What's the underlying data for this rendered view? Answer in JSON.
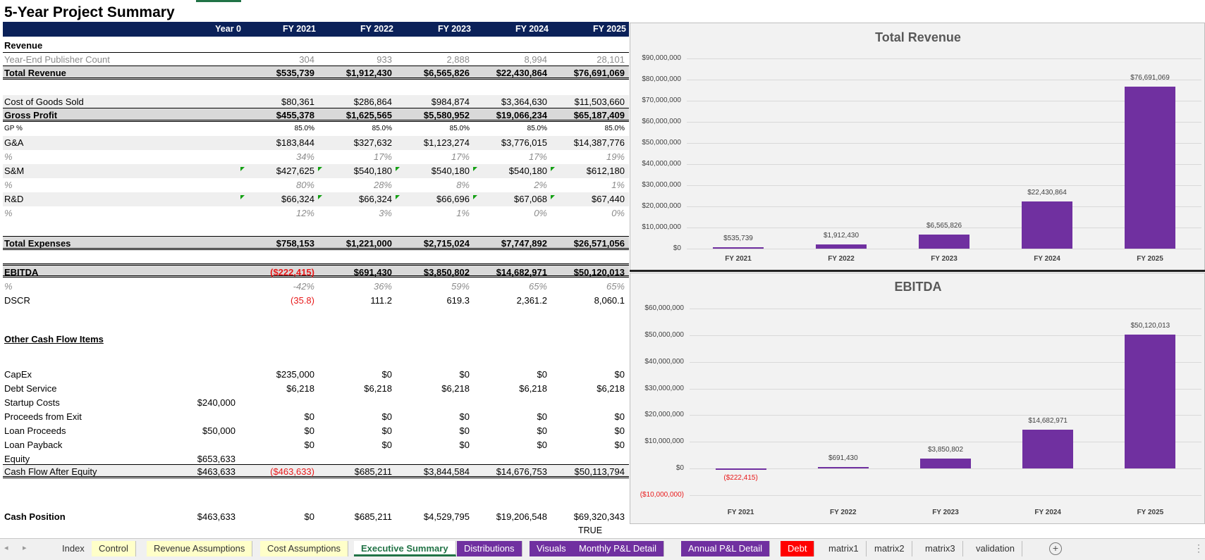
{
  "title": "5-Year Project Summary",
  "columns": [
    "Year 0",
    "FY 2021",
    "FY 2022",
    "FY 2023",
    "FY 2024",
    "FY 2025"
  ],
  "rows": [
    {
      "label": "Revenue",
      "vals": [
        "",
        "",
        "",
        "",
        "",
        ""
      ]
    },
    {
      "label": "Year-End Publisher Count",
      "vals": [
        "",
        "304",
        "933",
        "2,888",
        "8,994",
        "28,101"
      ]
    },
    {
      "label": "Total Revenue",
      "vals": [
        "",
        "$535,739",
        "$1,912,430",
        "$6,565,826",
        "$22,430,864",
        "$76,691,069"
      ]
    },
    {
      "label": "Cost of Goods Sold",
      "vals": [
        "",
        "$80,361",
        "$286,864",
        "$984,874",
        "$3,364,630",
        "$11,503,660"
      ]
    },
    {
      "label": "Gross Profit",
      "vals": [
        "",
        "$455,378",
        "$1,625,565",
        "$5,580,952",
        "$19,066,234",
        "$65,187,409"
      ]
    },
    {
      "label": "GP %",
      "vals": [
        "",
        "85.0%",
        "85.0%",
        "85.0%",
        "85.0%",
        "85.0%"
      ]
    },
    {
      "label": "G&A",
      "vals": [
        "",
        "$183,844",
        "$327,632",
        "$1,123,274",
        "$3,776,015",
        "$14,387,776"
      ]
    },
    {
      "label": "%",
      "vals": [
        "",
        "34%",
        "17%",
        "17%",
        "17%",
        "19%"
      ]
    },
    {
      "label": "S&M",
      "vals": [
        "",
        "$427,625",
        "$540,180",
        "$540,180",
        "$540,180",
        "$612,180"
      ]
    },
    {
      "label": "%",
      "vals": [
        "",
        "80%",
        "28%",
        "8%",
        "2%",
        "1%"
      ]
    },
    {
      "label": "R&D",
      "vals": [
        "",
        "$66,324",
        "$66,324",
        "$66,696",
        "$67,068",
        "$67,440"
      ]
    },
    {
      "label": "%",
      "vals": [
        "",
        "12%",
        "3%",
        "1%",
        "0%",
        "0%"
      ]
    },
    {
      "label": "Total Expenses",
      "vals": [
        "",
        "$758,153",
        "$1,221,000",
        "$2,715,024",
        "$7,747,892",
        "$26,571,056"
      ]
    },
    {
      "label": "EBITDA",
      "vals": [
        "",
        "($222,415)",
        "$691,430",
        "$3,850,802",
        "$14,682,971",
        "$50,120,013"
      ]
    },
    {
      "label": "%",
      "vals": [
        "",
        "-42%",
        "36%",
        "59%",
        "65%",
        "65%"
      ]
    },
    {
      "label": "DSCR",
      "vals": [
        "",
        "(35.8)",
        "111.2",
        "619.3",
        "2,361.2",
        "8,060.1"
      ]
    },
    {
      "label": "Other Cash Flow Items",
      "vals": [
        "",
        "",
        "",
        "",
        "",
        ""
      ]
    },
    {
      "label": "CapEx",
      "vals": [
        "",
        "$235,000",
        "$0",
        "$0",
        "$0",
        "$0"
      ]
    },
    {
      "label": "Debt Service",
      "vals": [
        "",
        "$6,218",
        "$6,218",
        "$6,218",
        "$6,218",
        "$6,218"
      ]
    },
    {
      "label": "Startup Costs",
      "vals": [
        "$240,000",
        "",
        "",
        "",
        "",
        ""
      ]
    },
    {
      "label": "Proceeds from Exit",
      "vals": [
        "",
        "$0",
        "$0",
        "$0",
        "$0",
        "$0"
      ]
    },
    {
      "label": "Loan Proceeds",
      "vals": [
        "$50,000",
        "$0",
        "$0",
        "$0",
        "$0",
        "$0"
      ]
    },
    {
      "label": "Loan Payback",
      "vals": [
        "",
        "$0",
        "$0",
        "$0",
        "$0",
        "$0"
      ]
    },
    {
      "label": "Equity",
      "vals": [
        "$653,633",
        "",
        "",
        "",
        "",
        ""
      ]
    },
    {
      "label": "Cash Flow After Equity",
      "vals": [
        "$463,633",
        "($463,633)",
        "$685,211",
        "$3,844,584",
        "$14,676,753",
        "$50,113,794"
      ]
    },
    {
      "label": "Cash Position",
      "vals": [
        "$463,633",
        "$0",
        "$685,211",
        "$4,529,795",
        "$19,206,548",
        "$69,320,343"
      ]
    }
  ],
  "true_label": "TRUE",
  "chart_data": [
    {
      "type": "bar",
      "title": "Total Revenue",
      "categories": [
        "FY 2021",
        "FY 2022",
        "FY 2023",
        "FY 2024",
        "FY 2025"
      ],
      "values": [
        535739,
        1912430,
        6565826,
        22430864,
        76691069
      ],
      "labels": [
        "$535,739",
        "$1,912,430",
        "$6,565,826",
        "$22,430,864",
        "$76,691,069"
      ],
      "ylim": [
        0,
        90000000
      ],
      "ticks": [
        "$0",
        "$10,000,000",
        "$20,000,000",
        "$30,000,000",
        "$40,000,000",
        "$50,000,000",
        "$60,000,000",
        "$70,000,000",
        "$80,000,000",
        "$90,000,000"
      ],
      "color": "#7030a0"
    },
    {
      "type": "bar",
      "title": "EBITDA",
      "categories": [
        "FY 2021",
        "FY 2022",
        "FY 2023",
        "FY 2024",
        "FY 2025"
      ],
      "values": [
        -222415,
        691430,
        3850802,
        14682971,
        50120013
      ],
      "labels": [
        "($222,415)",
        "$691,430",
        "$3,850,802",
        "$14,682,971",
        "$50,120,013"
      ],
      "ylim": [
        -10000000,
        60000000
      ],
      "ticks": [
        "($10,000,000)",
        "$0",
        "$10,000,000",
        "$20,000,000",
        "$30,000,000",
        "$40,000,000",
        "$50,000,000",
        "$60,000,000"
      ],
      "color": "#7030a0"
    }
  ],
  "tabs": [
    {
      "label": "Index",
      "style": "plain"
    },
    {
      "label": "Control",
      "style": "y"
    },
    {
      "label": "Revenue Assumptions",
      "style": "y"
    },
    {
      "label": "Cost Assumptions",
      "style": "y"
    },
    {
      "label": "Executive Summary",
      "style": "active"
    },
    {
      "label": "Distributions",
      "style": "p"
    },
    {
      "label": "Visuals",
      "style": "p"
    },
    {
      "label": "Monthly P&L Detail",
      "style": "p"
    },
    {
      "label": "Annual P&L Detail",
      "style": "p"
    },
    {
      "label": "Debt",
      "style": "r"
    },
    {
      "label": "matrix1",
      "style": "plain"
    },
    {
      "label": "matrix2",
      "style": "plain"
    },
    {
      "label": "matrix3",
      "style": "plain"
    },
    {
      "label": "validation",
      "style": "plain"
    }
  ],
  "add_sheet_symbol": "+",
  "more_symbol": "⋮",
  "nav_prev": "◂",
  "nav_next": "▸"
}
